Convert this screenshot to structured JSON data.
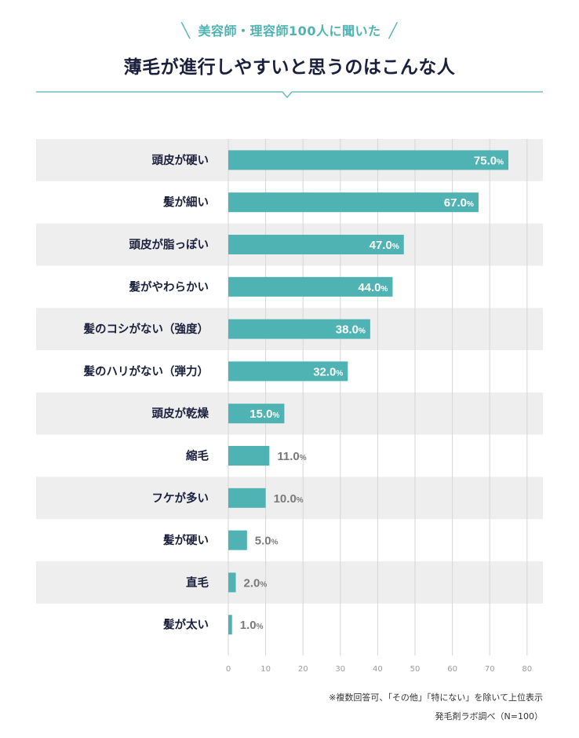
{
  "chart_data": {
    "type": "bar",
    "orientation": "horizontal",
    "subtitle": "美容師・理容師100人に聞いた",
    "title": "薄毛が進行しやすいと思うのはこんな人",
    "categories": [
      "頭皮が硬い",
      "髪が細い",
      "頭皮が脂っぽい",
      "髪がやわらかい",
      "髪のコシがない（強度）",
      "髪のハリがない（弾力）",
      "頭皮が乾燥",
      "縮毛",
      "フケが多い",
      "髪が硬い",
      "直毛",
      "髪が太い"
    ],
    "values": [
      75.0,
      67.0,
      47.0,
      44.0,
      38.0,
      32.0,
      15.0,
      11.0,
      10.0,
      5.0,
      2.0,
      1.0
    ],
    "value_unit": "%",
    "xlim": [
      0,
      80
    ],
    "xticks": [
      0,
      10,
      20,
      30,
      40,
      50,
      60,
      70,
      80
    ],
    "grid": true
  },
  "notes": {
    "line1": "※複数回答可、「その他」「特にない」を除いて上位表示",
    "line2": "発毛剤ラボ調べ（N=100）"
  },
  "colors": {
    "bar": "#4fb3b3",
    "row_band": "#eeeeee",
    "title": "#1a1f3c",
    "accent": "#4fb3b3"
  }
}
